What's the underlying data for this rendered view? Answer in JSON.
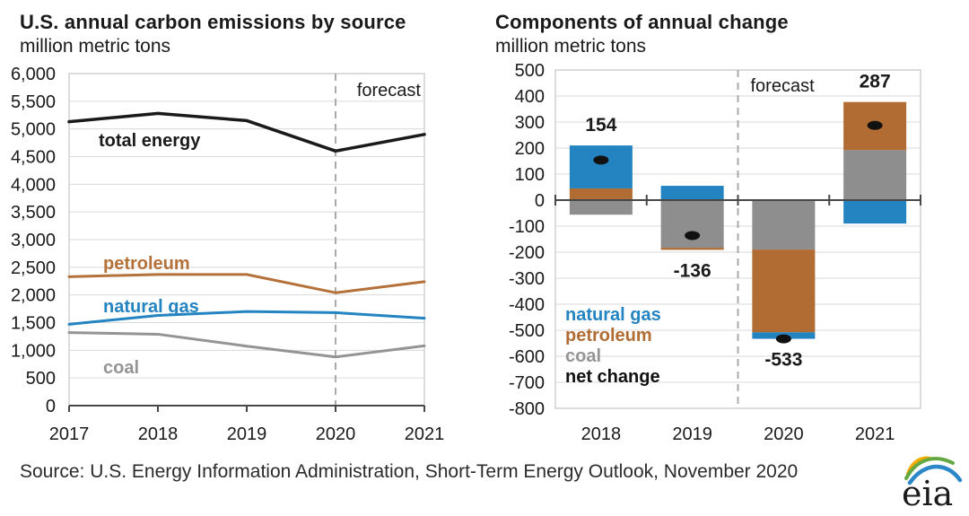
{
  "source_line": "Source: U.S. Energy Information Administration, Short-Term Energy Outlook, November 2020",
  "logo": {
    "text": "eia"
  },
  "colors": {
    "natural_gas": "#2484c1",
    "petroleum": "#b06c33",
    "petroleum_line": "#b5713a",
    "coal_bar": "#8e8e8e",
    "coal_line": "#949494",
    "total_energy": "#1a1a1a",
    "net_change": "#111111",
    "grid": "#d9d9d9",
    "border": "#c9c9c9",
    "axis": "#474747",
    "forecast_dash": "#aaaaaa",
    "text": "#1a1a1a"
  },
  "chart_data": [
    {
      "type": "line",
      "title": "U.S. annual carbon emissions by source",
      "subtitle": "million metric tons",
      "x": [
        2017,
        2018,
        2019,
        2020,
        2021
      ],
      "xlabel": "",
      "ylabel": "million metric tons",
      "ylim": [
        0,
        6000
      ],
      "ytick_step": 500,
      "grid": true,
      "forecast": {
        "label": "forecast",
        "dashed_line_at_x": 2020
      },
      "series": [
        {
          "name": "total energy",
          "color_key": "total_energy",
          "values": [
            5130,
            5280,
            5150,
            4600,
            4900
          ]
        },
        {
          "name": "petroleum",
          "color_key": "petroleum_line",
          "values": [
            2330,
            2370,
            2370,
            2040,
            2240
          ]
        },
        {
          "name": "natural gas",
          "color_key": "natural_gas",
          "values": [
            1470,
            1630,
            1700,
            1680,
            1580
          ]
        },
        {
          "name": "coal",
          "color_key": "coal_line",
          "values": [
            1320,
            1290,
            1075,
            880,
            1080
          ]
        }
      ]
    },
    {
      "type": "stacked-bar",
      "title": "Components of annual change",
      "subtitle": "million metric tons",
      "categories": [
        "2018",
        "2019",
        "2020",
        "2021"
      ],
      "xlabel": "",
      "ylabel": "million metric tons",
      "ylim": [
        -800,
        500
      ],
      "ytick_step": 100,
      "grid": true,
      "forecast": {
        "label": "forecast",
        "dashed_line_before_category": "2020"
      },
      "series": [
        {
          "name": "coal",
          "color_key": "coal_bar",
          "values": [
            -56,
            -183,
            -190,
            192
          ]
        },
        {
          "name": "petroleum",
          "color_key": "petroleum",
          "values": [
            45,
            -8,
            -318,
            185
          ]
        },
        {
          "name": "natural gas",
          "color_key": "natural_gas",
          "values": [
            165,
            55,
            -25,
            -90
          ]
        }
      ],
      "net_change": {
        "name": "net change",
        "color_key": "net_change",
        "values": [
          154,
          -136,
          -533,
          287
        ],
        "labels": [
          "154",
          "-136",
          "-533",
          "287"
        ]
      },
      "legend": [
        {
          "label": "natural gas",
          "color_key": "natural_gas"
        },
        {
          "label": "petroleum",
          "color_key": "petroleum"
        },
        {
          "label": "coal",
          "color_key": "coal_line"
        },
        {
          "label": "net change",
          "color_key": "net_change"
        }
      ]
    }
  ]
}
